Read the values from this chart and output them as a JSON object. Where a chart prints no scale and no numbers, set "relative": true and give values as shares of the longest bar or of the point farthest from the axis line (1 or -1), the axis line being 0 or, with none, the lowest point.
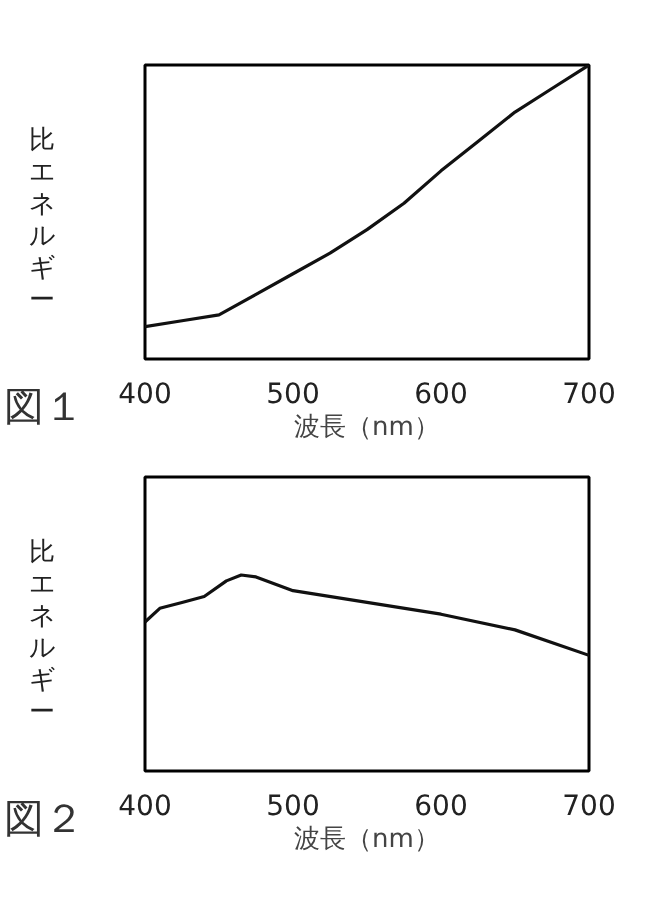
{
  "chart_data": [
    {
      "type": "line",
      "title": "図１",
      "xlabel": "波長（nm）",
      "ylabel": "比エネルギー",
      "relative": true,
      "xlim": [
        400,
        700
      ],
      "xticks": [
        400,
        500,
        600,
        700
      ],
      "grid": false,
      "x": [
        400,
        425,
        450,
        475,
        500,
        525,
        550,
        575,
        600,
        625,
        650,
        675,
        700
      ],
      "series": [
        {
          "color": "#111111",
          "values": [
            0.11,
            0.13,
            0.15,
            0.22,
            0.29,
            0.36,
            0.44,
            0.53,
            0.64,
            0.74,
            0.84,
            0.92,
            1.0
          ]
        }
      ]
    },
    {
      "type": "line",
      "title": "図２",
      "xlabel": "波長（nm）",
      "ylabel": "比エネルギー",
      "relative": true,
      "xlim": [
        400,
        700
      ],
      "xticks": [
        400,
        500,
        600,
        700
      ],
      "grid": false,
      "x": [
        400,
        410,
        425,
        440,
        455,
        465,
        475,
        500,
        550,
        600,
        650,
        700
      ],
      "series": [
        {
          "color": "#111111",
          "values": [
            0.76,
            0.83,
            0.86,
            0.89,
            0.97,
            1.0,
            0.99,
            0.92,
            0.86,
            0.8,
            0.72,
            0.59
          ]
        }
      ]
    }
  ]
}
